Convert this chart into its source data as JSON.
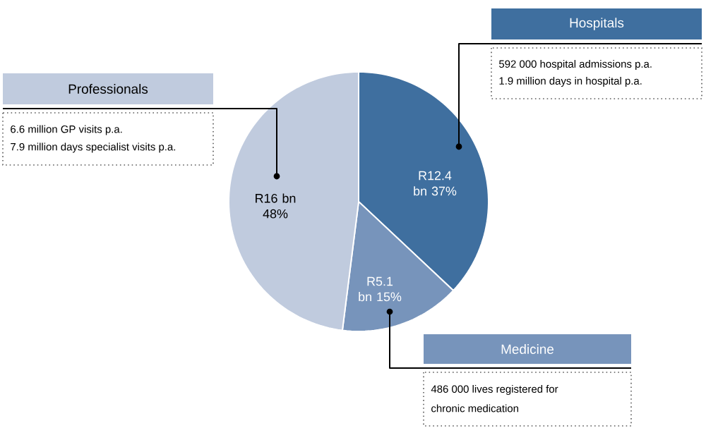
{
  "chart_data": {
    "type": "pie",
    "categories": [
      "Hospitals",
      "Medicine",
      "Professionals"
    ],
    "values": [
      37,
      15,
      48
    ],
    "colors": [
      "#3f6f9f",
      "#7794bb",
      "#c0cbde"
    ],
    "value_labels": [
      "R12.4 bn 37%",
      "R5.1 bn 15%",
      "R16 bn 48%"
    ],
    "annotations": [
      "592 000 hospital admissions p.a.",
      "1.9 million days in hospital p.a.",
      "486 000 lives registered for",
      "chronic medication",
      "6.6 million GP visits p.a.",
      "7.9 million days specialist visits p.a."
    ]
  }
}
